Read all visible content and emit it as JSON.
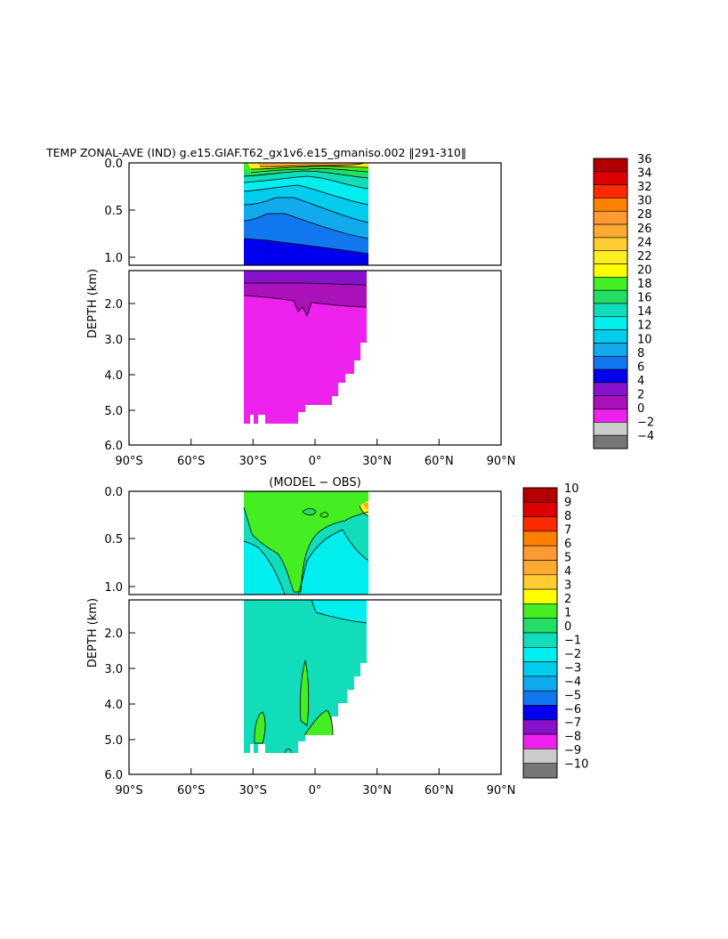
{
  "figure": {
    "title": "TEMP ZONAL-AVE (IND) g.e15.GIAF.T62_gx1v6.e15_gmaniso.002 ‖291-310‖"
  },
  "chart_data": [
    {
      "type": "heatmap",
      "name": "temperature-zonal-average",
      "title": "TEMP ZONAL-AVE (IND) g.e15.GIAF.T62_gx1v6.e15_gmaniso.002 ‖291-310‖",
      "ylabel": "DEPTH (km)",
      "xlim": [
        -90,
        90
      ],
      "ylim": [
        6.0,
        0.0
      ],
      "y_break": [
        1.1,
        1.1
      ],
      "x_ticks": [
        -90,
        -60,
        -30,
        0,
        30,
        60,
        90
      ],
      "x_tick_labels": [
        "90°S",
        "60°S",
        "30°S",
        "0°",
        "30°N",
        "60°N",
        "90°N"
      ],
      "y_ticks_upper": [
        0.0,
        0.5,
        1.0
      ],
      "y_tick_labels_upper": [
        "0.0",
        "0.5",
        "1.0"
      ],
      "y_ticks_lower": [
        2.0,
        3.0,
        4.0,
        5.0,
        6.0
      ],
      "y_tick_labels_lower": [
        "2.0",
        "3.0",
        "4.0",
        "5.0",
        "6.0"
      ],
      "data_lon_range": [
        -34,
        25
      ],
      "colorbar": {
        "levels": [
          "36",
          "34",
          "32",
          "30",
          "28",
          "26",
          "24",
          "22",
          "20",
          "18",
          "16",
          "14",
          "12",
          "10",
          "8",
          "6",
          "4",
          "2",
          "0",
          "−2",
          "−4"
        ],
        "colors": [
          "#b20000",
          "#dd0000",
          "#ff2a00",
          "#ff7f00",
          "#ff9933",
          "#ffaa33",
          "#ffcc33",
          "#ffee22",
          "#ffff00",
          "#44ee22",
          "#22dd66",
          "#11ddbb",
          "#00eeee",
          "#00ccee",
          "#11aaee",
          "#1177ee",
          "#0000ee",
          "#8811cc",
          "#aa11bb",
          "#ee22ee",
          "#cccccc",
          "#777777"
        ]
      }
    },
    {
      "type": "heatmap",
      "name": "model-minus-obs",
      "title": "(MODEL − OBS)",
      "ylabel": "DEPTH (km)",
      "xlim": [
        -90,
        90
      ],
      "ylim": [
        6.0,
        0.0
      ],
      "x_ticks": [
        -90,
        -60,
        -30,
        0,
        30,
        60,
        90
      ],
      "x_tick_labels": [
        "90°S",
        "60°S",
        "30°S",
        "0°",
        "30°N",
        "60°N",
        "90°N"
      ],
      "y_ticks_upper": [
        0.0,
        0.5,
        1.0
      ],
      "y_tick_labels_upper": [
        "0.0",
        "0.5",
        "1.0"
      ],
      "y_ticks_lower": [
        2.0,
        3.0,
        4.0,
        5.0,
        6.0
      ],
      "y_tick_labels_lower": [
        "2.0",
        "3.0",
        "4.0",
        "5.0",
        "6.0"
      ],
      "colorbar": {
        "levels": [
          "10",
          "9",
          "8",
          "7",
          "6",
          "5",
          "4",
          "3",
          "2",
          "1",
          "0",
          "−1",
          "−2",
          "−3",
          "−4",
          "−5",
          "−6",
          "−7",
          "−8",
          "−9",
          "−10"
        ],
        "colors": [
          "#b20000",
          "#dd0000",
          "#ff2a00",
          "#ff7f00",
          "#ff9933",
          "#ffaa33",
          "#ffcc33",
          "#ffff00",
          "#44ee22",
          "#22dd66",
          "#11ddbb",
          "#00eeee",
          "#00ccee",
          "#11aaee",
          "#1177ee",
          "#0000ee",
          "#8811cc",
          "#ee22ee",
          "#cccccc",
          "#777777"
        ]
      }
    }
  ]
}
